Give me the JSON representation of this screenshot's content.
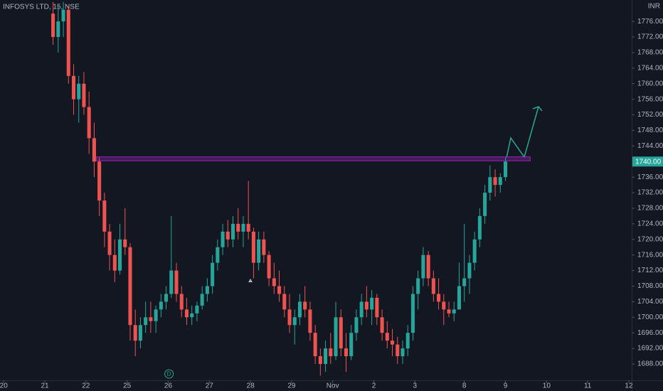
{
  "chart_data": {
    "type": "candlestick",
    "title": "INFOSYS LTD, 15, NSE",
    "currency": "INR",
    "up_color": "#26a69a",
    "down_color": "#ef5350",
    "xlim": [
      -0.09,
      15.27
    ],
    "ylim": [
      1683.8,
      1781.5
    ],
    "xticks": [
      {
        "value": 0,
        "label": "20"
      },
      {
        "value": 1,
        "label": "21"
      },
      {
        "value": 2,
        "label": "22"
      },
      {
        "value": 3,
        "label": "25"
      },
      {
        "value": 4,
        "label": "26"
      },
      {
        "value": 5,
        "label": "27"
      },
      {
        "value": 6,
        "label": "28"
      },
      {
        "value": 7,
        "label": "29"
      },
      {
        "value": 8,
        "label": "Nov"
      },
      {
        "value": 9,
        "label": "2"
      },
      {
        "value": 10,
        "label": "3"
      },
      {
        "value": 11.2,
        "label": "8"
      },
      {
        "value": 12.2,
        "label": "9"
      },
      {
        "value": 13.2,
        "label": "10"
      },
      {
        "value": 14.2,
        "label": "11"
      },
      {
        "value": 15.2,
        "label": "12"
      }
    ],
    "yticks": [
      {
        "value": 1688,
        "label": "1688.00"
      },
      {
        "value": 1692,
        "label": "1692.00"
      },
      {
        "value": 1696,
        "label": "1696.00"
      },
      {
        "value": 1700,
        "label": "1700.00"
      },
      {
        "value": 1704,
        "label": "1704.00"
      },
      {
        "value": 1708,
        "label": "1708.00"
      },
      {
        "value": 1712,
        "label": "1712.00"
      },
      {
        "value": 1716,
        "label": "1716.00"
      },
      {
        "value": 1720,
        "label": "1720.00"
      },
      {
        "value": 1724,
        "label": "1724.00"
      },
      {
        "value": 1728,
        "label": "1728.00"
      },
      {
        "value": 1732,
        "label": "1732.00"
      },
      {
        "value": 1736,
        "label": "1736.00"
      },
      {
        "value": 1744,
        "label": "1744.00"
      },
      {
        "value": 1748,
        "label": "1748.00"
      },
      {
        "value": 1752,
        "label": "1752.00"
      },
      {
        "value": 1756,
        "label": "1756.00"
      },
      {
        "value": 1760,
        "label": "1760.00"
      },
      {
        "value": 1764,
        "label": "1764.00"
      },
      {
        "value": 1768,
        "label": "1768.00"
      },
      {
        "value": 1772,
        "label": "1772.00"
      },
      {
        "value": 1776,
        "label": "1776.00"
      }
    ],
    "last_price": {
      "value": 1740,
      "label": "1740.00"
    },
    "zone": {
      "x": [
        2.25,
        12.8
      ],
      "price": [
        1740.2,
        1741.2
      ],
      "color": "#7b1fa2"
    },
    "dividend_marker": {
      "x": 4.02,
      "label": "D"
    },
    "x": [
      1.2,
      1.325,
      1.45,
      1.575,
      1.7,
      1.825,
      1.95,
      2.075,
      2.2,
      2.325,
      2.45,
      2.575,
      2.7,
      2.825,
      2.95,
      3.075,
      3.2,
      3.325,
      3.45,
      3.575,
      3.7,
      3.825,
      3.95,
      4.075,
      4.2,
      4.325,
      4.45,
      4.575,
      4.7,
      4.825,
      4.95,
      5.075,
      5.2,
      5.325,
      5.45,
      5.575,
      5.7,
      5.825,
      5.95,
      6.075,
      6.2,
      6.325,
      6.45,
      6.575,
      6.7,
      6.825,
      6.95,
      7.075,
      7.2,
      7.325,
      7.45,
      7.575,
      7.7,
      7.825,
      7.95,
      8.075,
      8.2,
      8.325,
      8.45,
      8.575,
      8.7,
      8.825,
      8.95,
      9.075,
      9.2,
      9.325,
      9.45,
      9.575,
      9.7,
      9.825,
      9.95,
      10.075,
      10.2,
      10.325,
      10.45,
      10.575,
      10.7,
      10.825,
      10.95,
      11.075,
      11.2,
      11.325,
      11.45,
      11.575,
      11.7,
      11.825,
      11.95,
      12.075,
      12.2
    ],
    "open": [
      1778,
      1772,
      1776,
      1779,
      1762,
      1756,
      1760,
      1754,
      1746,
      1740,
      1730,
      1722,
      1716,
      1712,
      1720,
      1718,
      1698,
      1694,
      1698,
      1700,
      1699,
      1702,
      1704,
      1706,
      1712,
      1706,
      1702,
      1700,
      1701,
      1703,
      1706,
      1708,
      1714,
      1718,
      1722,
      1720,
      1724,
      1722,
      1724,
      1722,
      1714,
      1720,
      1716,
      1710,
      1708,
      1706,
      1702,
      1698,
      1700,
      1704,
      1702,
      1696,
      1690,
      1688,
      1692,
      1690,
      1700,
      1692,
      1690,
      1696,
      1700,
      1704,
      1702,
      1705,
      1700,
      1696,
      1694,
      1693,
      1690,
      1692,
      1696,
      1706,
      1710,
      1716,
      1710,
      1706,
      1704,
      1702,
      1701,
      1702,
      1708,
      1710,
      1714,
      1720,
      1726,
      1732,
      1736,
      1734,
      1736
    ],
    "high": [
      1781,
      1780,
      1781,
      1780,
      1765,
      1762,
      1763,
      1758,
      1750,
      1741,
      1732,
      1724,
      1720,
      1724,
      1728,
      1719,
      1702,
      1700,
      1704,
      1704,
      1703,
      1706,
      1708,
      1726,
      1714,
      1708,
      1705,
      1703,
      1704,
      1708,
      1710,
      1716,
      1720,
      1724,
      1725,
      1726,
      1728,
      1726,
      1735,
      1723,
      1722,
      1722,
      1717,
      1714,
      1712,
      1708,
      1706,
      1702,
      1706,
      1708,
      1704,
      1698,
      1692,
      1694,
      1696,
      1704,
      1702,
      1696,
      1698,
      1702,
      1706,
      1708,
      1707,
      1706,
      1702,
      1699,
      1697,
      1695,
      1694,
      1698,
      1708,
      1712,
      1718,
      1717,
      1712,
      1710,
      1706,
      1704,
      1704,
      1714,
      1724,
      1716,
      1722,
      1728,
      1734,
      1739,
      1738,
      1737,
      1741
    ],
    "low": [
      1770,
      1768,
      1772,
      1760,
      1752,
      1750,
      1752,
      1742,
      1736,
      1726,
      1718,
      1712,
      1709,
      1711,
      1716,
      1694,
      1690,
      1692,
      1696,
      1696,
      1696,
      1700,
      1702,
      1705,
      1704,
      1700,
      1698,
      1698,
      1699,
      1702,
      1704,
      1706,
      1712,
      1716,
      1718,
      1718,
      1720,
      1718,
      1720,
      1710,
      1712,
      1714,
      1708,
      1706,
      1704,
      1700,
      1696,
      1693,
      1698,
      1700,
      1694,
      1688,
      1685,
      1686,
      1688,
      1689,
      1690,
      1686,
      1689,
      1694,
      1698,
      1700,
      1698,
      1698,
      1694,
      1692,
      1690,
      1688,
      1688,
      1690,
      1694,
      1702,
      1708,
      1708,
      1704,
      1702,
      1698,
      1700,
      1699,
      1702,
      1704,
      1706,
      1712,
      1718,
      1724,
      1730,
      1731,
      1732,
      1735
    ],
    "close": [
      1772,
      1776,
      1779,
      1762,
      1756,
      1760,
      1754,
      1746,
      1740,
      1730,
      1722,
      1716,
      1712,
      1720,
      1718,
      1698,
      1694,
      1698,
      1700,
      1699,
      1702,
      1704,
      1706,
      1712,
      1706,
      1702,
      1700,
      1701,
      1703,
      1706,
      1708,
      1714,
      1718,
      1722,
      1720,
      1724,
      1722,
      1724,
      1722,
      1714,
      1720,
      1716,
      1710,
      1708,
      1706,
      1702,
      1698,
      1700,
      1704,
      1702,
      1696,
      1690,
      1688,
      1692,
      1690,
      1700,
      1692,
      1690,
      1696,
      1700,
      1704,
      1702,
      1705,
      1700,
      1696,
      1694,
      1693,
      1690,
      1692,
      1696,
      1706,
      1710,
      1716,
      1710,
      1706,
      1704,
      1702,
      1701,
      1702,
      1708,
      1710,
      1714,
      1720,
      1726,
      1732,
      1736,
      1734,
      1736,
      1740
    ]
  }
}
